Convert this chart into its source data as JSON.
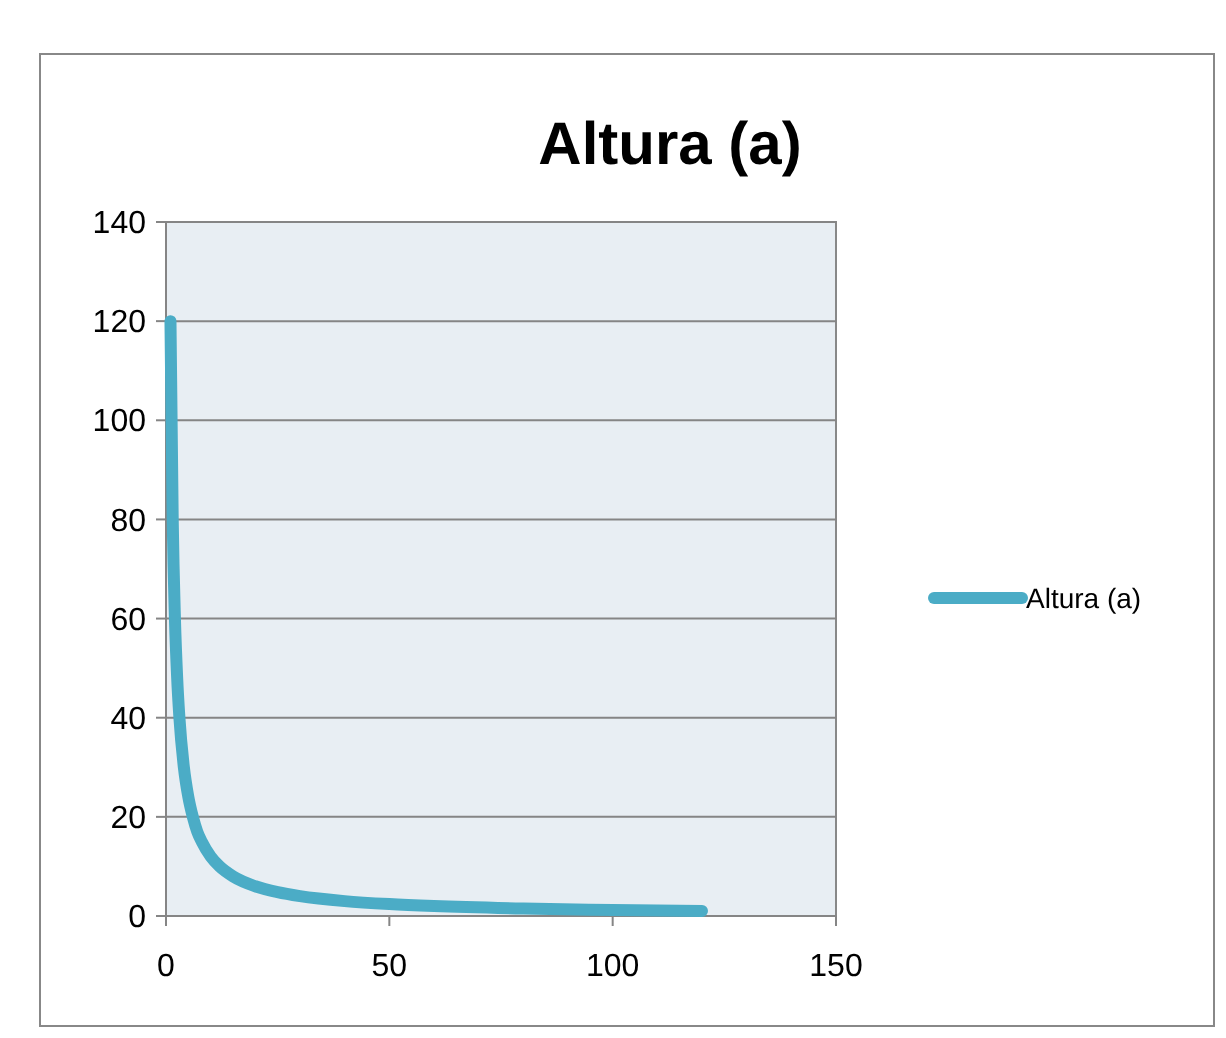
{
  "chart_data": {
    "type": "line",
    "title": "Altura (a)",
    "x": [
      1,
      1.5,
      2,
      2.5,
      3,
      4,
      5,
      6,
      7,
      8,
      10,
      12,
      15,
      20,
      25,
      30,
      40,
      50,
      60,
      80,
      100,
      120
    ],
    "series": [
      {
        "name": "Altura (a)",
        "color": "#4bacc6",
        "values": [
          120,
          80,
          60,
          48,
          40,
          30,
          24,
          20,
          17,
          15,
          12,
          10,
          8,
          6,
          4.8,
          4,
          3,
          2.4,
          2,
          1.5,
          1.2,
          1
        ]
      }
    ],
    "xlim": [
      0,
      150
    ],
    "xticks": [
      0,
      50,
      100,
      150
    ],
    "ylim": [
      0,
      140
    ],
    "yticks": [
      0,
      20,
      40,
      60,
      80,
      100,
      120,
      140
    ],
    "grid": "y",
    "legend": "right",
    "marker": "none",
    "line_style": "solid"
  }
}
